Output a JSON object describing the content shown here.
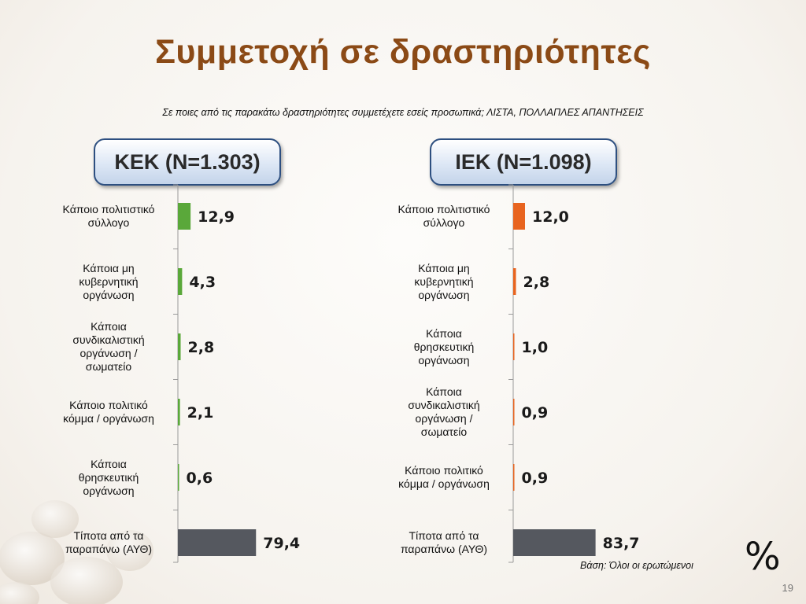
{
  "slide": {
    "title": "Συμμετοχή σε δραστηριότητες",
    "subtitle": "Σε ποιες από τις παρακάτω δραστηριότητες συμμετέχετε εσείς προσωπικά; ΛΙΣΤΑ, ΠΟΛΛΑΠΛΕΣ ΑΠΑΝΤΗΣΕΙΣ",
    "unit_symbol": "%",
    "base_note": "Βάση: Όλοι οι ερωτώμενοι",
    "page_number": "19"
  },
  "chart_data": [
    {
      "type": "bar",
      "orientation": "horizontal",
      "group_label": "ΚΕΚ (N=1.303)",
      "categories": [
        "Κάποιο πολιτιστικό σύλλογο",
        "Κάποια μη κυβερνητική οργάνωση",
        "Κάποια συνδικαλιστική οργάνωση / σωματείο",
        "Κάποιο πολιτικό κόμμα / οργάνωση",
        "Κάποια θρησκευτική οργάνωση",
        "Τίποτα από τα παραπάνω (ΑΥΘ)"
      ],
      "values": [
        12.9,
        4.3,
        2.8,
        2.1,
        0.6,
        79.4
      ],
      "value_labels": [
        "12,9",
        "4,3",
        "2,8",
        "2,1",
        "0,6",
        "79,4"
      ],
      "bar_colors": [
        "#5aa83a",
        "#5aa83a",
        "#5aa83a",
        "#5aa83a",
        "#5aa83a",
        "#55585f"
      ],
      "xlim": [
        0,
        100
      ]
    },
    {
      "type": "bar",
      "orientation": "horizontal",
      "group_label": "ΙΕΚ (N=1.098)",
      "categories": [
        "Κάποιο πολιτιστικό σύλλογο",
        "Κάποια μη κυβερνητική οργάνωση",
        "Κάποια θρησκευτική οργάνωση",
        "Κάποια συνδικαλιστική οργάνωση / σωματείο",
        "Κάποιο πολιτικό κόμμα / οργάνωση",
        "Τίποτα από τα παραπάνω (ΑΥΘ)"
      ],
      "values": [
        12.0,
        2.8,
        1.0,
        0.9,
        0.9,
        83.7
      ],
      "value_labels": [
        "12,0",
        "2,8",
        "1,0",
        "0,9",
        "0,9",
        "83,7"
      ],
      "bar_colors": [
        "#e8641f",
        "#e8641f",
        "#e8641f",
        "#e8641f",
        "#e8641f",
        "#55585f"
      ],
      "xlim": [
        0,
        100
      ]
    }
  ]
}
